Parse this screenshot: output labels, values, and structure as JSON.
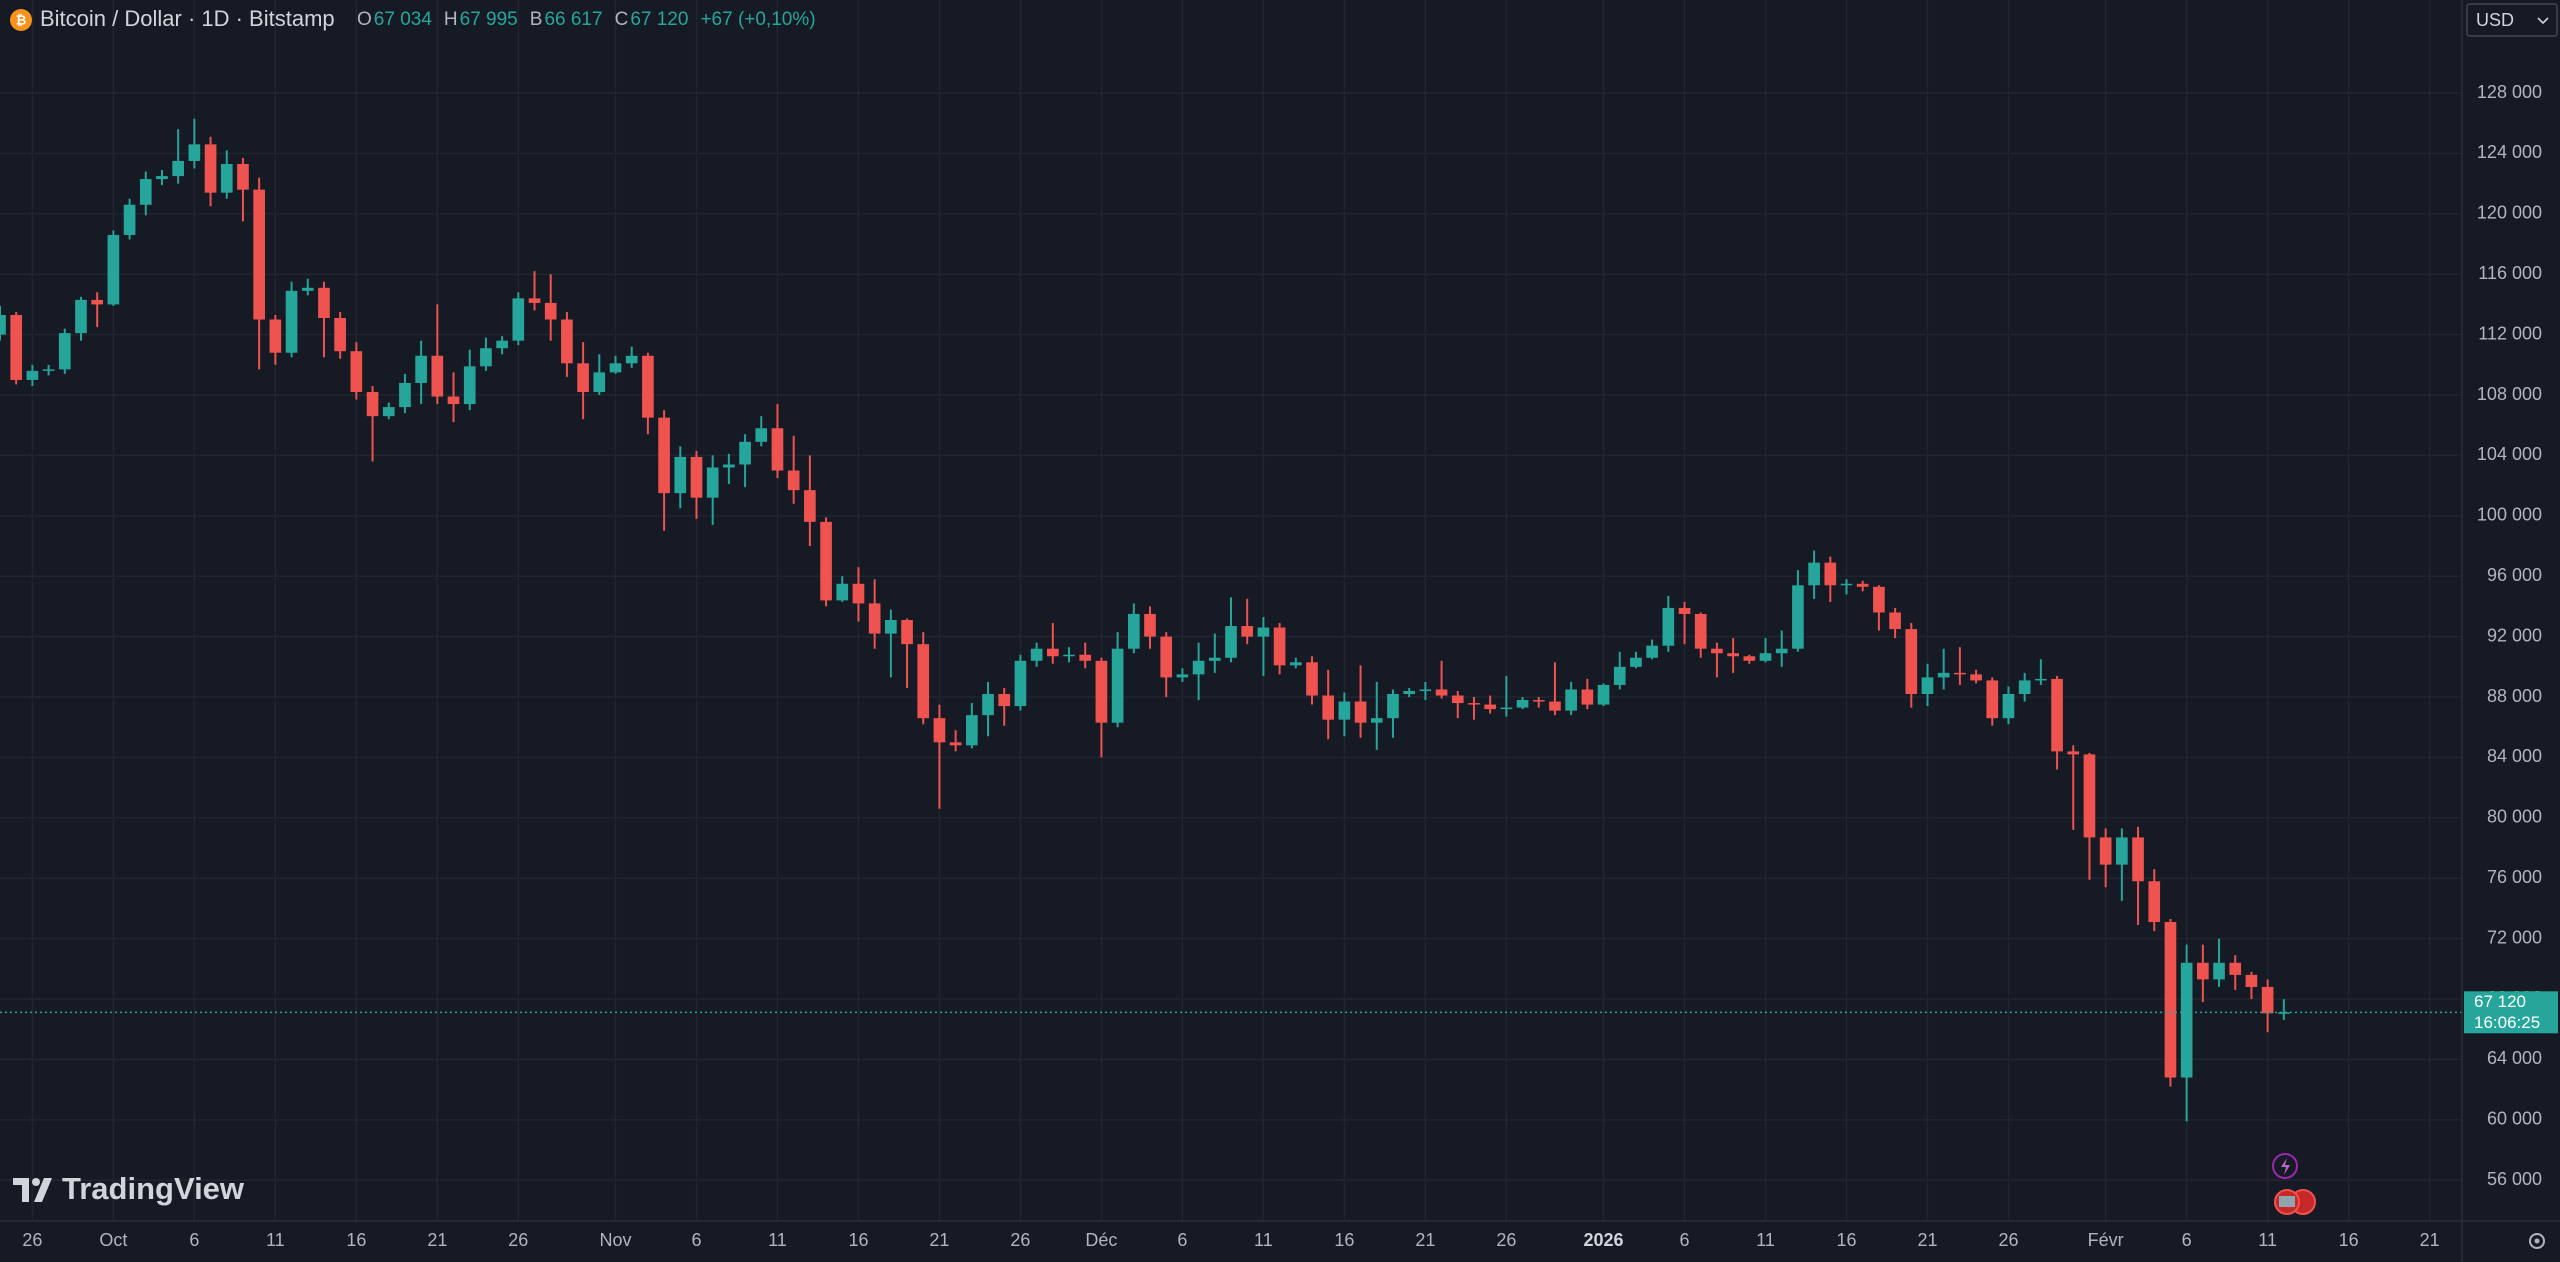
{
  "chart_data": {
    "type": "candlestick",
    "title": "Bitcoin / Dollar · 1D · Bitstamp",
    "legend": [
      {
        "key": "O",
        "value": "67 034"
      },
      {
        "key": "H",
        "value": "67 995"
      },
      {
        "key": "B",
        "value": "66 617"
      },
      {
        "key": "C",
        "value": "67 120"
      }
    ],
    "change": "+67 (+0,10%)",
    "currency": "USD",
    "brand": "TradingView",
    "last_price": {
      "label": "67 120",
      "countdown": "16:06:25"
    },
    "up_color": "#26a69a",
    "down_color": "#ef5350",
    "grid": true,
    "x": [
      "2025-09-24",
      "2025-09-25",
      "2025-09-26",
      "2025-09-27",
      "2025-09-28",
      "2025-09-29",
      "2025-09-30",
      "2025-10-01",
      "2025-10-02",
      "2025-10-03",
      "2025-10-04",
      "2025-10-05",
      "2025-10-06",
      "2025-10-07",
      "2025-10-08",
      "2025-10-09",
      "2025-10-10",
      "2025-10-11",
      "2025-10-12",
      "2025-10-13",
      "2025-10-14",
      "2025-10-15",
      "2025-10-16",
      "2025-10-17",
      "2025-10-18",
      "2025-10-19",
      "2025-10-20",
      "2025-10-21",
      "2025-10-22",
      "2025-10-23",
      "2025-10-24",
      "2025-10-25",
      "2025-10-26",
      "2025-10-27",
      "2025-10-28",
      "2025-10-29",
      "2025-10-30",
      "2025-10-31",
      "2025-11-01",
      "2025-11-02",
      "2025-11-03",
      "2025-11-04",
      "2025-11-05",
      "2025-11-06",
      "2025-11-07",
      "2025-11-08",
      "2025-11-09",
      "2025-11-10",
      "2025-11-11",
      "2025-11-12",
      "2025-11-13",
      "2025-11-14",
      "2025-11-15",
      "2025-11-16",
      "2025-11-17",
      "2025-11-18",
      "2025-11-19",
      "2025-11-20",
      "2025-11-21",
      "2025-11-22",
      "2025-11-23",
      "2025-11-24",
      "2025-11-25",
      "2025-11-26",
      "2025-11-27",
      "2025-11-28",
      "2025-11-29",
      "2025-11-30",
      "2025-12-01",
      "2025-12-02",
      "2025-12-03",
      "2025-12-04",
      "2025-12-05",
      "2025-12-06",
      "2025-12-07",
      "2025-12-08",
      "2025-12-09",
      "2025-12-10",
      "2025-12-11",
      "2025-12-12",
      "2025-12-13",
      "2025-12-14",
      "2025-12-15",
      "2025-12-16",
      "2025-12-17",
      "2025-12-18",
      "2025-12-19",
      "2025-12-20",
      "2025-12-21",
      "2025-12-22",
      "2025-12-23",
      "2025-12-24",
      "2025-12-25",
      "2025-12-26",
      "2025-12-27",
      "2025-12-28",
      "2025-12-29",
      "2025-12-30",
      "2025-12-31",
      "2026-01-01",
      "2026-01-02",
      "2026-01-03",
      "2026-01-04",
      "2026-01-05",
      "2026-01-06",
      "2026-01-07",
      "2026-01-08",
      "2026-01-09",
      "2026-01-10",
      "2026-01-11",
      "2026-01-12",
      "2026-01-13",
      "2026-01-14",
      "2026-01-15",
      "2026-01-16",
      "2026-01-17",
      "2026-01-18",
      "2026-01-19",
      "2026-01-20",
      "2026-01-21",
      "2026-01-22",
      "2026-01-23",
      "2026-01-24",
      "2026-01-25",
      "2026-01-26",
      "2026-01-27",
      "2026-01-28",
      "2026-01-29",
      "2026-01-30",
      "2026-01-31",
      "2026-02-01",
      "2026-02-02",
      "2026-02-03",
      "2026-02-04",
      "2026-02-05",
      "2026-02-06",
      "2026-02-07",
      "2026-02-08",
      "2026-02-09",
      "2026-02-10",
      "2026-02-11",
      "2026-02-12"
    ],
    "open": [
      112000,
      113300,
      109000,
      109600,
      109700,
      112100,
      114300,
      114000,
      118600,
      120600,
      122300,
      122500,
      123500,
      124600,
      121400,
      123300,
      121600,
      113000,
      110800,
      114900,
      115100,
      113100,
      110900,
      108200,
      106600,
      107200,
      108800,
      110600,
      107900,
      107400,
      109900,
      111100,
      111600,
      114400,
      114100,
      113000,
      110100,
      108200,
      109500,
      110100,
      110600,
      106500,
      101500,
      103900,
      101200,
      103200,
      103400,
      104900,
      105800,
      103000,
      101700,
      99600,
      94400,
      95500,
      94200,
      92200,
      93100,
      91500,
      86600,
      85000,
      84800,
      86800,
      88200,
      87400,
      90400,
      91200,
      90700,
      90800,
      90400,
      86300,
      91200,
      93500,
      92000,
      89300,
      89500,
      90400,
      90600,
      92700,
      92000,
      92600,
      90100,
      90300,
      88100,
      86500,
      87700,
      86300,
      86600,
      88200,
      88400,
      88500,
      88100,
      87600,
      87500,
      87200,
      87300,
      87800,
      87700,
      87100,
      88500,
      87500,
      88800,
      90000,
      90600,
      91400,
      93900,
      93500,
      91200,
      90900,
      90700,
      90400,
      90900,
      91200,
      95400,
      96900,
      95400,
      95500,
      95300,
      93600,
      92500,
      88200,
      89300,
      89600,
      89500,
      89100,
      86600,
      88200,
      89100,
      89200,
      84400,
      84200,
      78700,
      76900,
      78700,
      75800,
      73100,
      62800,
      70400,
      69300,
      70400,
      69600,
      68800,
      67034
    ],
    "high": [
      113900,
      113500,
      110000,
      110000,
      112400,
      114500,
      114800,
      118900,
      121000,
      122800,
      122900,
      125600,
      126300,
      125100,
      124200,
      123700,
      122400,
      113300,
      115500,
      115700,
      115500,
      113500,
      111500,
      108600,
      107500,
      109400,
      111600,
      114000,
      109500,
      111000,
      111800,
      111900,
      114800,
      116200,
      116000,
      113500,
      111500,
      110700,
      110600,
      111200,
      110800,
      107000,
      104600,
      104300,
      104000,
      104100,
      105400,
      106600,
      107400,
      105300,
      104000,
      99900,
      96000,
      96600,
      95800,
      93800,
      93200,
      92300,
      87500,
      85800,
      87600,
      89000,
      88600,
      90800,
      91600,
      92900,
      91300,
      91600,
      90600,
      92300,
      94200,
      94000,
      92300,
      89900,
      91600,
      92200,
      94600,
      94500,
      93300,
      92900,
      90600,
      90700,
      89800,
      88300,
      90100,
      89000,
      88500,
      88600,
      89000,
      90400,
      88400,
      88000,
      88100,
      89400,
      88000,
      88000,
      90300,
      89000,
      89200,
      88900,
      91000,
      91000,
      91800,
      94700,
      94300,
      93600,
      91600,
      91900,
      90800,
      91900,
      92400,
      96400,
      97700,
      97300,
      95800,
      95700,
      95400,
      93900,
      92900,
      90200,
      91200,
      91300,
      89800,
      89300,
      88700,
      89600,
      90500,
      89400,
      84800,
      84300,
      79300,
      79300,
      79400,
      76600,
      73300,
      71600,
      71600,
      72000,
      70900,
      69800,
      69300,
      67995
    ],
    "low": [
      111600,
      108700,
      108600,
      109300,
      109400,
      111600,
      112500,
      113900,
      118300,
      119900,
      121900,
      122000,
      123000,
      120500,
      121000,
      119500,
      109700,
      110000,
      110500,
      114600,
      110500,
      110400,
      107700,
      103600,
      106400,
      106800,
      107400,
      107400,
      106200,
      107000,
      109600,
      110700,
      111300,
      113600,
      111600,
      109200,
      106400,
      108000,
      109400,
      109800,
      105400,
      99000,
      100500,
      99800,
      99400,
      102100,
      101900,
      104600,
      102500,
      100800,
      98000,
      94000,
      94300,
      93000,
      91200,
      89300,
      88600,
      86200,
      80600,
      84400,
      84600,
      85400,
      86100,
      87100,
      90000,
      90200,
      90300,
      89900,
      84000,
      86000,
      90900,
      91200,
      88000,
      89000,
      87800,
      89600,
      90300,
      91500,
      89400,
      89500,
      89900,
      87500,
      85200,
      85400,
      85300,
      84500,
      85300,
      88000,
      87800,
      87900,
      86600,
      86500,
      86900,
      86700,
      87200,
      87300,
      86800,
      86800,
      87200,
      87400,
      88500,
      89900,
      90500,
      91000,
      91500,
      90600,
      89300,
      89600,
      90200,
      90300,
      90000,
      91000,
      94500,
      94300,
      94800,
      95000,
      92400,
      91900,
      87300,
      87400,
      88500,
      88800,
      88900,
      86100,
      86200,
      87700,
      88800,
      83200,
      79200,
      75900,
      75400,
      74500,
      72900,
      72500,
      62200,
      59900,
      67800,
      68800,
      68600,
      68000,
      65800,
      66617
    ],
    "close": [
      113300,
      109000,
      109600,
      109700,
      112100,
      114300,
      114000,
      118600,
      120600,
      122300,
      122500,
      123500,
      124600,
      121400,
      123300,
      121600,
      113000,
      110800,
      114900,
      115100,
      113100,
      110900,
      108200,
      106600,
      107200,
      108800,
      110600,
      107900,
      107400,
      109900,
      111100,
      111600,
      114400,
      114100,
      113000,
      110100,
      108200,
      109500,
      110100,
      110600,
      106500,
      101500,
      103900,
      101200,
      103200,
      103400,
      104900,
      105800,
      103000,
      101700,
      99600,
      94400,
      95500,
      94200,
      92200,
      93100,
      91500,
      86600,
      85000,
      84800,
      86800,
      88200,
      87400,
      90400,
      91200,
      90700,
      90800,
      90400,
      86300,
      91200,
      93500,
      92000,
      89300,
      89500,
      90400,
      90600,
      92700,
      92000,
      92600,
      90100,
      90300,
      88100,
      86500,
      87700,
      86300,
      86600,
      88200,
      88400,
      88500,
      88100,
      87600,
      87500,
      87200,
      87300,
      87800,
      87700,
      87100,
      88500,
      87500,
      88800,
      90000,
      90600,
      91400,
      93900,
      93500,
      91200,
      90900,
      90700,
      90400,
      90900,
      91200,
      95400,
      96900,
      95400,
      95500,
      95300,
      93600,
      92500,
      88200,
      89300,
      89600,
      89500,
      89100,
      86600,
      88200,
      89100,
      89200,
      84400,
      84200,
      78700,
      76900,
      78700,
      75800,
      73100,
      62800,
      70400,
      69300,
      70400,
      69600,
      68800,
      67053,
      67120
    ],
    "xlim": [
      "2025-09-24",
      "2026-02-23"
    ],
    "xticks": [
      {
        "value": "2025-09-26",
        "label": "26"
      },
      {
        "value": "2025-10-01",
        "label": "Oct"
      },
      {
        "value": "2025-10-06",
        "label": "6"
      },
      {
        "value": "2025-10-11",
        "label": "11"
      },
      {
        "value": "2025-10-16",
        "label": "16"
      },
      {
        "value": "2025-10-21",
        "label": "21"
      },
      {
        "value": "2025-10-26",
        "label": "26"
      },
      {
        "value": "2025-11-01",
        "label": "Nov"
      },
      {
        "value": "2025-11-06",
        "label": "6"
      },
      {
        "value": "2025-11-11",
        "label": "11"
      },
      {
        "value": "2025-11-16",
        "label": "16"
      },
      {
        "value": "2025-11-21",
        "label": "21"
      },
      {
        "value": "2025-11-26",
        "label": "26"
      },
      {
        "value": "2025-12-01",
        "label": "Déc"
      },
      {
        "value": "2025-12-06",
        "label": "6"
      },
      {
        "value": "2025-12-11",
        "label": "11"
      },
      {
        "value": "2025-12-16",
        "label": "16"
      },
      {
        "value": "2025-12-21",
        "label": "21"
      },
      {
        "value": "2025-12-26",
        "label": "26"
      },
      {
        "value": "2026-01-01",
        "label": "2026",
        "bold": true
      },
      {
        "value": "2026-01-06",
        "label": "6"
      },
      {
        "value": "2026-01-11",
        "label": "11"
      },
      {
        "value": "2026-01-16",
        "label": "16"
      },
      {
        "value": "2026-01-21",
        "label": "21"
      },
      {
        "value": "2026-01-26",
        "label": "26"
      },
      {
        "value": "2026-02-01",
        "label": "Févr"
      },
      {
        "value": "2026-02-06",
        "label": "6"
      },
      {
        "value": "2026-02-11",
        "label": "11"
      },
      {
        "value": "2026-02-16",
        "label": "16"
      },
      {
        "value": "2026-02-21",
        "label": "21"
      }
    ],
    "ylim": [
      53300,
      134160
    ],
    "yticks": [
      {
        "value": 56000,
        "label": "56 000"
      },
      {
        "value": 60000,
        "label": "60 000"
      },
      {
        "value": 64000,
        "label": "64 000"
      },
      {
        "value": 68000,
        "label": "68 000"
      },
      {
        "value": 72000,
        "label": "72 000"
      },
      {
        "value": 76000,
        "label": "76 000"
      },
      {
        "value": 80000,
        "label": "80 000"
      },
      {
        "value": 84000,
        "label": "84 000"
      },
      {
        "value": 88000,
        "label": "88 000"
      },
      {
        "value": 92000,
        "label": "92 000"
      },
      {
        "value": 96000,
        "label": "96 000"
      },
      {
        "value": 100000,
        "label": "100 000"
      },
      {
        "value": 104000,
        "label": "104 000"
      },
      {
        "value": 108000,
        "label": "108 000"
      },
      {
        "value": 112000,
        "label": "112 000"
      },
      {
        "value": 116000,
        "label": "116 000"
      },
      {
        "value": 120000,
        "label": "120 000"
      },
      {
        "value": 124000,
        "label": "124 000"
      },
      {
        "value": 128000,
        "label": "128 000"
      }
    ]
  }
}
